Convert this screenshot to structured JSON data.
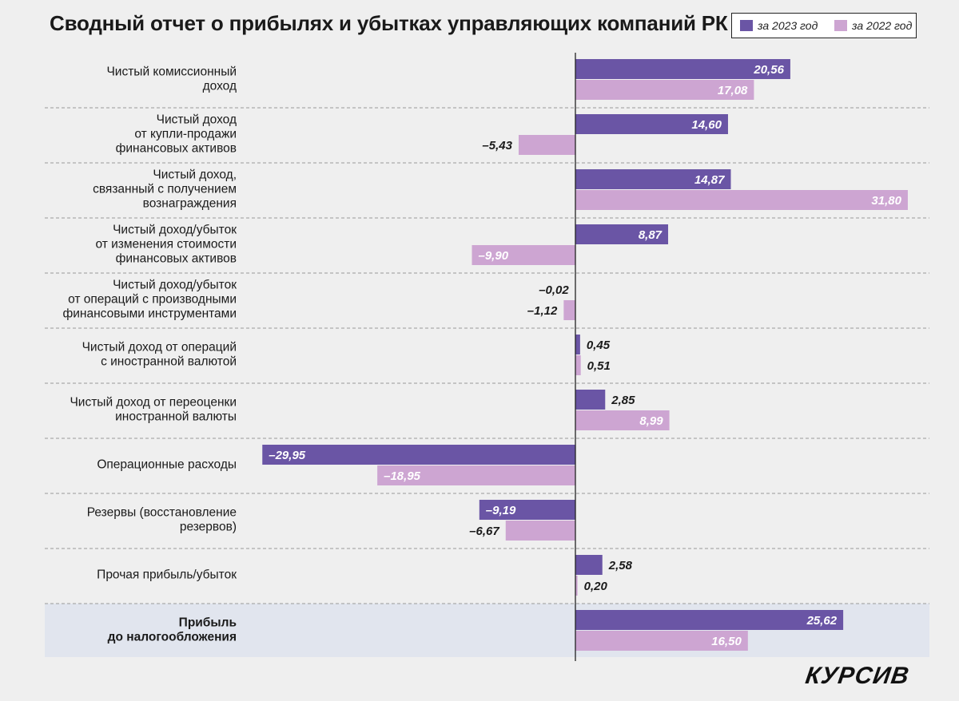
{
  "title": "Сводный отчет о прибылях и убытках управляющих компаний РК",
  "legend": {
    "items": [
      {
        "label": "за 2023 год",
        "color": "#6a55a5"
      },
      {
        "label": "за 2022 год",
        "color": "#cda5d2"
      }
    ]
  },
  "brand": "КУРСИВ",
  "chart_data": {
    "type": "bar",
    "orientation": "horizontal",
    "title": "Сводный отчет о прибылях и убытках управляющих компаний РК",
    "xlim": [
      -33,
      35
    ],
    "categories": [
      [
        "Чистый комиссионный",
        "доход"
      ],
      [
        "Чистый доход",
        "от купли-продажи",
        "финансовых активов"
      ],
      [
        "Чистый доход,",
        "связанный с получением",
        "вознаграждения"
      ],
      [
        "Чистый доход/убыток",
        "от изменения стоимости",
        "финансовых активов"
      ],
      [
        "Чистый доход/убыток",
        "от операций с производными",
        "финансовыми инструментами"
      ],
      [
        "Чистый доход от операций",
        "с иностранной валютой"
      ],
      [
        "Чистый доход от переоценки",
        "иностранной валюты"
      ],
      [
        "Операционные расходы"
      ],
      [
        "Резервы (восстановление",
        "резервов)"
      ],
      [
        "Прочая прибыль/убыток"
      ],
      [
        "Прибыль",
        "до налогообложения"
      ]
    ],
    "highlighted_category_index": 10,
    "series": [
      {
        "name": "за 2023 год",
        "color": "#6a55a5",
        "values": [
          20.56,
          14.6,
          14.87,
          8.87,
          -0.02,
          0.45,
          2.85,
          -29.95,
          -9.19,
          2.58,
          25.62
        ],
        "labels": [
          "20,56",
          "14,60",
          "14,87",
          "8,87",
          "–0,02",
          "0,45",
          "2,85",
          "–29,95",
          "–9,19",
          "2,58",
          "25,62"
        ]
      },
      {
        "name": "за 2022 год",
        "color": "#cda5d2",
        "values": [
          17.08,
          -5.43,
          31.8,
          -9.9,
          -1.12,
          0.51,
          8.99,
          -18.95,
          -6.67,
          0.2,
          16.5
        ],
        "labels": [
          "17,08",
          "–5,43",
          "31,80",
          "–9,90",
          "–1,12",
          "0,51",
          "8,99",
          "–18,95",
          "–6,67",
          "0,20",
          "16,50"
        ]
      }
    ]
  }
}
